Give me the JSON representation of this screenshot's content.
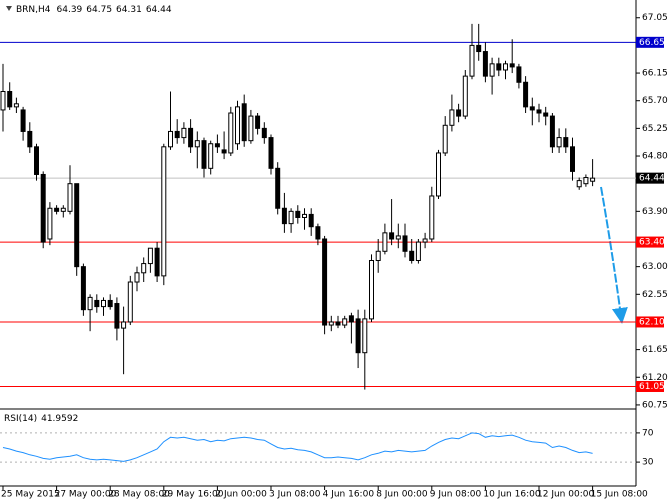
{
  "chart_data": [
    {
      "type": "candlestick",
      "title": "BRN,H4",
      "categories": [
        "25 May 2015",
        null,
        null,
        null,
        null,
        null,
        null,
        null,
        "27 May 00:00",
        null,
        null,
        null,
        null,
        null,
        null,
        null,
        "28 May 08:00",
        null,
        null,
        null,
        null,
        null,
        null,
        null,
        "29 May 16:00",
        null,
        null,
        null,
        null,
        null,
        null,
        null,
        "2 Jun 00:00",
        null,
        null,
        null,
        null,
        null,
        null,
        null,
        "3 Jun 08:00",
        null,
        null,
        null,
        null,
        null,
        null,
        null,
        "4 Jun 16:00",
        null,
        null,
        null,
        null,
        null,
        null,
        null,
        "8 Jun 00:00",
        null,
        null,
        null,
        null,
        null,
        null,
        null,
        "9 Jun 08:00",
        null,
        null,
        null,
        null,
        null,
        null,
        null,
        "10 Jun 16:00",
        null,
        null,
        null,
        null,
        null,
        null,
        null,
        "12 Jun 00:00",
        null,
        null,
        null,
        null,
        null,
        null,
        null,
        "15 Jun 08:00"
      ],
      "open": [
        65.55,
        65.85,
        65.6,
        65.55,
        65.2,
        64.95,
        64.5,
        63.45,
        63.95,
        63.9,
        63.9,
        64.35,
        63.0,
        62.3,
        62.45,
        62.35,
        62.45,
        62.4,
        62.0,
        62.1,
        62.75,
        62.9,
        63.05,
        63.3,
        62.85,
        64.95,
        65.2,
        65.1,
        65.25,
        64.95,
        65.05,
        64.6,
        65.0,
        64.9,
        64.85,
        65.0,
        65.65,
        65.05,
        65.45,
        65.25,
        65.1,
        64.6,
        63.95,
        63.7,
        63.9,
        63.8,
        63.85,
        63.65,
        63.45,
        62.05,
        62.1,
        62.05,
        62.2,
        62.15,
        61.6,
        62.15,
        63.1,
        63.25,
        63.55,
        63.45,
        63.5,
        63.25,
        63.1,
        63.4,
        63.45,
        64.15,
        64.85,
        65.3,
        65.55,
        65.45,
        66.1,
        66.6,
        66.5,
        66.1,
        66.3,
        66.2,
        66.3,
        66.25,
        66.0,
        65.6,
        65.55,
        65.5,
        65.45,
        64.95,
        65.1,
        64.95,
        64.3,
        64.35,
        64.39
      ],
      "high": [
        66.3,
        66.0,
        65.75,
        65.6,
        65.35,
        65.0,
        64.55,
        64.05,
        64.0,
        64.0,
        64.65,
        64.35,
        63.05,
        62.55,
        62.55,
        62.5,
        62.55,
        62.5,
        62.35,
        62.85,
        63.0,
        63.15,
        63.3,
        63.4,
        65.0,
        65.85,
        65.4,
        65.35,
        65.4,
        65.2,
        65.1,
        65.05,
        65.15,
        65.2,
        65.6,
        65.7,
        65.8,
        65.55,
        65.5,
        65.35,
        65.15,
        64.7,
        64.2,
        63.95,
        64.0,
        63.95,
        63.95,
        63.7,
        63.5,
        62.2,
        62.2,
        62.2,
        62.25,
        62.3,
        62.3,
        63.2,
        63.45,
        63.7,
        64.1,
        63.7,
        63.7,
        63.45,
        63.45,
        63.55,
        64.3,
        64.9,
        65.45,
        65.8,
        65.65,
        66.2,
        66.95,
        66.95,
        66.65,
        66.4,
        66.4,
        66.35,
        66.7,
        66.3,
        66.1,
        65.75,
        65.65,
        65.6,
        65.5,
        65.25,
        65.25,
        65.1,
        64.45,
        64.5,
        64.75
      ],
      "low": [
        65.2,
        65.55,
        65.5,
        65.05,
        64.85,
        64.4,
        63.3,
        63.35,
        63.85,
        63.8,
        63.85,
        62.85,
        62.2,
        61.95,
        62.25,
        62.2,
        62.3,
        61.8,
        61.25,
        62.05,
        62.6,
        62.75,
        62.9,
        62.75,
        62.7,
        64.9,
        65.0,
        65.0,
        64.85,
        64.6,
        64.45,
        64.5,
        64.85,
        64.75,
        64.8,
        64.9,
        64.95,
        65.0,
        65.15,
        65.0,
        64.5,
        63.85,
        63.55,
        63.55,
        63.7,
        63.6,
        63.5,
        63.35,
        61.9,
        61.95,
        62.0,
        62.0,
        61.75,
        61.35,
        61.0,
        62.1,
        62.9,
        63.2,
        63.35,
        63.3,
        63.15,
        63.05,
        63.05,
        63.3,
        63.4,
        64.1,
        64.8,
        65.2,
        65.35,
        65.4,
        66.05,
        66.35,
        66.0,
        65.8,
        66.1,
        66.05,
        66.15,
        65.9,
        65.5,
        65.3,
        65.35,
        65.3,
        64.85,
        64.85,
        64.85,
        64.4,
        64.25,
        64.3,
        64.31
      ],
      "close": [
        65.85,
        65.6,
        65.65,
        65.2,
        64.95,
        64.5,
        63.4,
        63.95,
        63.9,
        63.95,
        64.35,
        63.0,
        62.3,
        62.5,
        62.35,
        62.45,
        62.35,
        62.0,
        62.1,
        62.75,
        62.9,
        63.05,
        63.3,
        62.85,
        64.95,
        65.2,
        65.1,
        65.25,
        64.95,
        65.05,
        64.6,
        65.0,
        64.95,
        64.85,
        65.5,
        65.6,
        65.05,
        65.45,
        65.25,
        65.1,
        64.6,
        63.95,
        63.7,
        63.9,
        63.8,
        63.85,
        63.65,
        63.45,
        62.05,
        62.1,
        62.05,
        62.15,
        62.1,
        61.6,
        62.15,
        63.1,
        63.25,
        63.55,
        63.45,
        63.5,
        63.25,
        63.1,
        63.4,
        63.45,
        64.15,
        64.85,
        65.3,
        65.55,
        65.45,
        66.1,
        66.6,
        66.5,
        66.1,
        66.3,
        66.2,
        66.3,
        66.25,
        66.0,
        65.6,
        65.55,
        65.5,
        65.45,
        64.95,
        65.1,
        64.95,
        64.55,
        64.4,
        64.45,
        64.44
      ],
      "bull_color": "#ffffff",
      "bear_color": "#000000",
      "ylim": [
        60.7,
        67.29
      ],
      "yticks": [
        67.05,
        66.15,
        {
          "value": 65.7,
          "label": "65.70"
        },
        65.25,
        {
          "value": 64.8,
          "label": "64.80"
        },
        {
          "value": 63.9,
          "label": "63.90"
        },
        {
          "value": 63,
          "label": "63.00"
        },
        62.55,
        61.65,
        {
          "value": 61.2,
          "label": "61.20"
        },
        60.75
      ],
      "levels": [
        {
          "value": 66.65,
          "color": "#0000cc"
        },
        {
          "value": 63.4,
          "label": "63.40",
          "color": "#ff0000"
        },
        {
          "value": 62.1,
          "label": "62.10",
          "color": "#ff0000"
        },
        {
          "value": 61.05,
          "label": "61.05",
          "color": "#ff0000"
        }
      ],
      "current_price_color": "#c0c0c0"
    },
    {
      "type": "line",
      "title": "RSI(14)",
      "values": [
        50,
        48,
        45,
        43,
        40,
        38,
        35,
        34,
        36,
        37,
        38,
        40,
        36,
        34,
        33,
        34,
        33,
        32,
        31,
        33,
        36,
        40,
        44,
        48,
        58,
        64,
        63,
        64,
        62,
        60,
        61,
        58,
        60,
        59,
        62,
        63,
        64,
        63,
        61,
        60,
        55,
        50,
        48,
        49,
        47,
        46,
        44,
        40,
        36,
        36,
        37,
        36,
        35,
        33,
        36,
        40,
        42,
        45,
        44,
        46,
        45,
        44,
        45,
        46,
        52,
        57,
        61,
        63,
        62,
        66,
        70,
        69,
        64,
        66,
        65,
        66,
        67,
        64,
        60,
        58,
        57,
        56,
        50,
        52,
        50,
        46,
        43,
        44,
        41.9592
      ],
      "color": "#1e90ff",
      "ylim": [
        0,
        100
      ],
      "yticks": [
        70,
        30
      ],
      "grid": true
    }
  ]
}
